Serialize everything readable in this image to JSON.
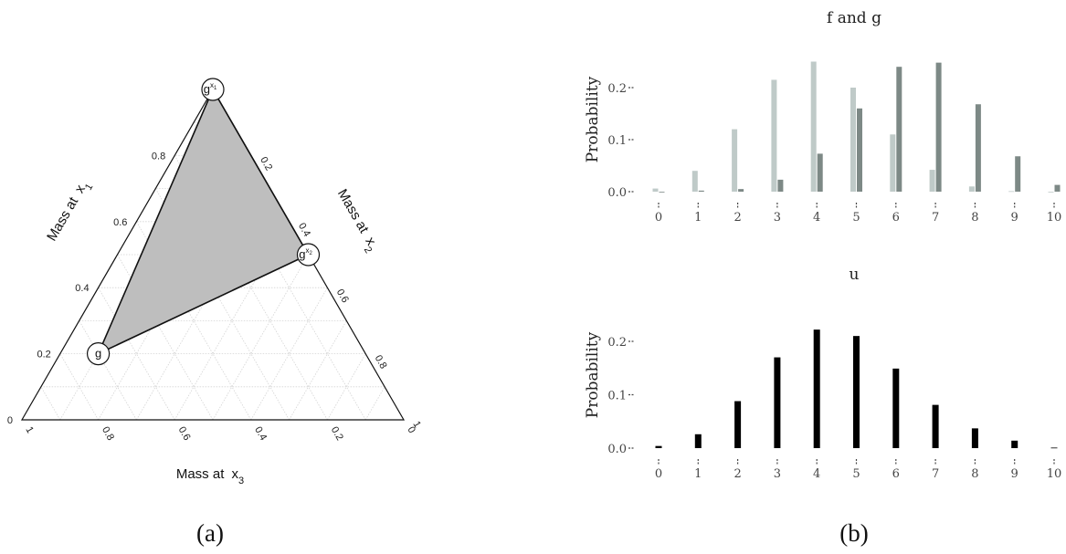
{
  "panel_a": {
    "caption": "(a)",
    "left_axis_label": "Mass at",
    "left_axis_var": "x",
    "left_axis_sub": "1",
    "right_axis_label": "Mass at",
    "right_axis_var": "x",
    "right_axis_sub": "2",
    "bottom_axis_label": "Mass at",
    "bottom_axis_var": "x",
    "bottom_axis_sub": "3",
    "left_ticks": [
      "0",
      "0.2",
      "0.4",
      "0.6",
      "0.8"
    ],
    "right_ticks": [
      "0.2",
      "0.4",
      "0.6",
      "0.8",
      "1"
    ],
    "bottom_ticks": [
      "1",
      "0.8",
      "0.6",
      "0.4",
      "0.2",
      "0"
    ],
    "points": [
      {
        "label": "g",
        "sup": "x1",
        "sup_base": "x",
        "sup_sub": "1",
        "x1": 1.0,
        "x2": 0.0,
        "x3": 0.0
      },
      {
        "label": "g",
        "sup": "x2",
        "sup_base": "x",
        "sup_sub": "2",
        "x1": 0.5,
        "x2": 0.5,
        "x3": 0.0
      },
      {
        "label": "g",
        "sup": "",
        "x1": 0.2,
        "x2": 0.1,
        "x3": 0.7
      }
    ],
    "fill_color": "#bebebe"
  },
  "panel_b": {
    "caption": "(b)"
  },
  "chart_data": [
    {
      "type": "bar",
      "title": "f and g",
      "xlabel": "",
      "ylabel": "Probability",
      "categories": [
        "0",
        "1",
        "2",
        "3",
        "4",
        "5",
        "6",
        "7",
        "8",
        "9",
        "10"
      ],
      "ylim": [
        0,
        0.25
      ],
      "yticks": [
        "0.0",
        "0.1",
        "0.2"
      ],
      "series": [
        {
          "values": [
            0.006,
            0.04,
            0.12,
            0.215,
            0.25,
            0.2,
            0.11,
            0.042,
            0.01,
            0.001,
            0.0
          ],
          "color": "#bfcac8"
        },
        {
          "values": [
            0.0,
            0.002,
            0.005,
            0.023,
            0.073,
            0.16,
            0.24,
            0.248,
            0.168,
            0.068,
            0.013
          ],
          "color": "#7d8986"
        }
      ]
    },
    {
      "type": "bar",
      "title": "u",
      "xlabel": "",
      "ylabel": "Probability",
      "categories": [
        "0",
        "1",
        "2",
        "3",
        "4",
        "5",
        "6",
        "7",
        "8",
        "9",
        "10"
      ],
      "ylim": [
        0,
        0.23
      ],
      "yticks": [
        "0.0",
        "0.1",
        "0.2"
      ],
      "series": [
        {
          "values": [
            0.004,
            0.026,
            0.088,
            0.17,
            0.222,
            0.21,
            0.149,
            0.081,
            0.037,
            0.014,
            0.001
          ],
          "color": "#000000"
        }
      ]
    }
  ]
}
